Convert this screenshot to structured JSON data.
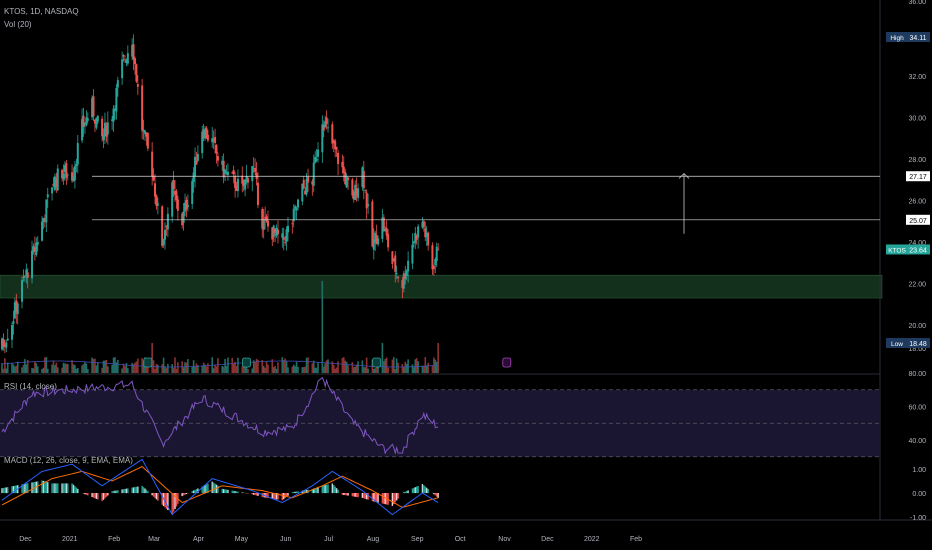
{
  "header": {
    "symbol_line": "KTOS, 1D, NASDAQ",
    "volume_label": "Vol (20)"
  },
  "rsi_panel": {
    "label": "RSI (14, close)"
  },
  "macd_panel": {
    "label": "MACD (12, 26, close, 9, EMA, EMA)"
  },
  "colors": {
    "background": "#000000",
    "up": "#26a69a",
    "down": "#ef5350",
    "rsi_line": "#7e57c2",
    "rsi_band": "#1a1530",
    "macd_line": "#2962ff",
    "signal_line": "#ff6d00",
    "support_zone": "#12301c",
    "resistance_line": "#d9d9d9",
    "axis_text": "#b2b5be"
  },
  "chart_data": {
    "type": "candlestick",
    "price_axis": {
      "range": [
        18,
        36
      ],
      "ticks": [
        "36.00",
        "32.00",
        "30.00",
        "28.00",
        "26.00",
        "24.00",
        "22.00",
        "20.00",
        "18.00"
      ]
    },
    "x_ticks": [
      "Dec",
      "2021",
      "Feb",
      "Mar",
      "Apr",
      "May",
      "Jun",
      "Jul",
      "Aug",
      "Sep",
      "Oct",
      "Nov",
      "Dec",
      "2022",
      "Feb"
    ],
    "price_tags": [
      {
        "label": "High",
        "value": "34.11",
        "kind": "high"
      },
      {
        "label": "",
        "value": "27.17",
        "kind": "level"
      },
      {
        "label": "",
        "value": "25.07",
        "kind": "level"
      },
      {
        "label": "KTOS",
        "value": "23.64",
        "kind": "last"
      },
      {
        "label": "Low",
        "value": "18.48",
        "kind": "low"
      }
    ],
    "horizontal_levels": [
      27.17,
      25.07
    ],
    "support_zone": [
      21.3,
      22.4
    ],
    "arrow": {
      "from": 24.4,
      "to": 27.3
    },
    "close_path": [
      [
        "2020-11-16",
        19.0
      ],
      [
        "2020-11-23",
        20.2
      ],
      [
        "2020-11-30",
        21.9
      ],
      [
        "2020-12-07",
        23.2
      ],
      [
        "2020-12-14",
        24.9
      ],
      [
        "2020-12-21",
        26.8
      ],
      [
        "2020-12-28",
        27.4
      ],
      [
        "2021-01-04",
        27.2
      ],
      [
        "2021-01-11",
        29.5
      ],
      [
        "2021-01-18",
        30.5
      ],
      [
        "2021-01-25",
        29.0
      ],
      [
        "2021-02-01",
        30.2
      ],
      [
        "2021-02-08",
        32.5
      ],
      [
        "2021-02-15",
        33.8
      ],
      [
        "2021-02-22",
        29.5
      ],
      [
        "2021-03-01",
        27.5
      ],
      [
        "2021-03-08",
        24.0
      ],
      [
        "2021-03-15",
        26.5
      ],
      [
        "2021-03-22",
        25.0
      ],
      [
        "2021-03-29",
        27.0
      ],
      [
        "2021-04-05",
        29.5
      ],
      [
        "2021-04-12",
        28.8
      ],
      [
        "2021-04-19",
        27.5
      ],
      [
        "2021-04-26",
        27.0
      ],
      [
        "2021-05-03",
        26.5
      ],
      [
        "2021-05-10",
        27.8
      ],
      [
        "2021-05-17",
        25.0
      ],
      [
        "2021-05-24",
        24.5
      ],
      [
        "2021-05-31",
        24.0
      ],
      [
        "2021-06-07",
        25.0
      ],
      [
        "2021-06-14",
        26.5
      ],
      [
        "2021-06-21",
        27.0
      ],
      [
        "2021-06-28",
        30.0
      ],
      [
        "2021-07-05",
        28.7
      ],
      [
        "2021-07-12",
        27.5
      ],
      [
        "2021-07-19",
        26.0
      ],
      [
        "2021-07-26",
        27.5
      ],
      [
        "2021-08-02",
        23.8
      ],
      [
        "2021-08-09",
        25.0
      ],
      [
        "2021-08-16",
        23.0
      ],
      [
        "2021-08-23",
        22.0
      ],
      [
        "2021-08-30",
        24.0
      ],
      [
        "2021-09-06",
        25.0
      ],
      [
        "2021-09-13",
        22.8
      ],
      [
        "2021-09-17",
        23.64
      ]
    ],
    "volume_spikes": [
      "2021-03-01",
      "2021-06-28",
      "2021-08-09",
      "2021-09-17"
    ],
    "earnings_markers": [
      "2021-02-26",
      "2021-05-06",
      "2021-08-05",
      "2021-11-04"
    ],
    "rsi": {
      "range": [
        20,
        80
      ],
      "ticks": [
        "80.00",
        "60.00",
        "40.00"
      ],
      "bands": [
        30,
        70
      ],
      "midline": 50,
      "path": [
        [
          "2020-11-16",
          45
        ],
        [
          "2020-12-07",
          68
        ],
        [
          "2021-01-04",
          70
        ],
        [
          "2021-02-15",
          73
        ],
        [
          "2021-03-08",
          38
        ],
        [
          "2021-04-05",
          65
        ],
        [
          "2021-05-17",
          45
        ],
        [
          "2021-06-07",
          47
        ],
        [
          "2021-06-28",
          77
        ],
        [
          "2021-07-19",
          50
        ],
        [
          "2021-08-09",
          35
        ],
        [
          "2021-08-23",
          34
        ],
        [
          "2021-09-06",
          55
        ],
        [
          "2021-09-17",
          48
        ]
      ]
    },
    "macd": {
      "range": [
        -1.5,
        1.6
      ],
      "ticks": [
        "1.00",
        "0.00",
        "-1.00"
      ],
      "macd_path": [
        [
          "2020-11-16",
          -0.3
        ],
        [
          "2020-12-14",
          0.9
        ],
        [
          "2021-01-04",
          1.2
        ],
        [
          "2021-01-25",
          0.3
        ],
        [
          "2021-02-22",
          1.4
        ],
        [
          "2021-03-15",
          -0.9
        ],
        [
          "2021-04-12",
          0.6
        ],
        [
          "2021-05-10",
          0.1
        ],
        [
          "2021-05-31",
          -0.4
        ],
        [
          "2021-06-21",
          0.3
        ],
        [
          "2021-07-05",
          0.9
        ],
        [
          "2021-07-26",
          0.1
        ],
        [
          "2021-08-16",
          -0.9
        ],
        [
          "2021-09-06",
          0.0
        ],
        [
          "2021-09-17",
          -0.4
        ]
      ],
      "signal_path": [
        [
          "2020-11-16",
          -0.5
        ],
        [
          "2020-12-21",
          0.6
        ],
        [
          "2021-01-11",
          0.9
        ],
        [
          "2021-02-01",
          0.5
        ],
        [
          "2021-02-22",
          1.1
        ],
        [
          "2021-03-22",
          -0.4
        ],
        [
          "2021-04-19",
          0.3
        ],
        [
          "2021-05-17",
          0.1
        ],
        [
          "2021-06-07",
          -0.2
        ],
        [
          "2021-06-28",
          0.3
        ],
        [
          "2021-07-12",
          0.7
        ],
        [
          "2021-08-02",
          0.1
        ],
        [
          "2021-08-23",
          -0.6
        ],
        [
          "2021-09-17",
          -0.2
        ]
      ]
    }
  }
}
